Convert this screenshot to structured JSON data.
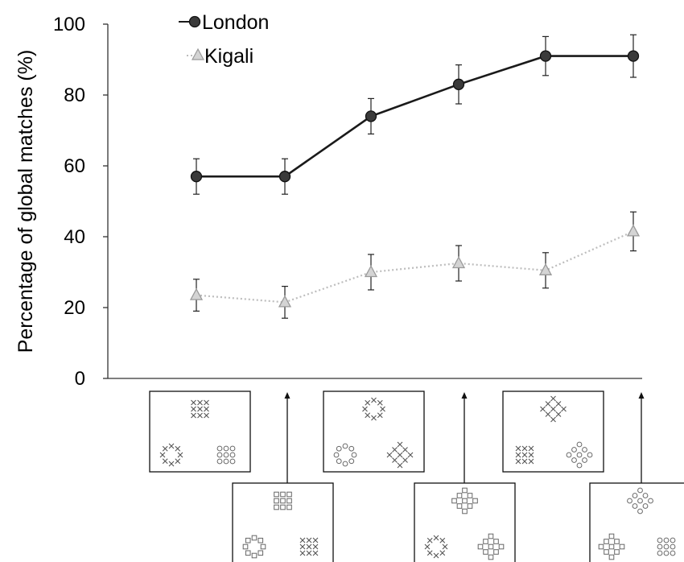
{
  "chart_data": {
    "type": "line",
    "title": "",
    "xlabel": "",
    "ylabel": "Percentage of global matches (%)",
    "ylim": [
      0,
      100
    ],
    "yticks": [
      0,
      20,
      40,
      60,
      80,
      100
    ],
    "grid": false,
    "legend_position": "top-left",
    "x": [
      1,
      2,
      3,
      4,
      5,
      6
    ],
    "series": [
      {
        "name": "London",
        "values": [
          57,
          57,
          74,
          83,
          91,
          91
        ],
        "error": [
          5,
          5,
          5,
          5.5,
          5.5,
          6
        ],
        "color": "#1a1a1a",
        "marker": "circle",
        "line_style": "solid"
      },
      {
        "name": "Kigali",
        "values": [
          23.5,
          21.5,
          30,
          32.5,
          30.5,
          41.5
        ],
        "error": [
          4.5,
          4.5,
          5,
          5,
          5,
          5.5
        ],
        "color": "#c0c0c0",
        "marker": "triangle",
        "line_style": "dotted"
      }
    ],
    "stimuli": [
      {
        "target": "x-square",
        "options": [
          "x-circle",
          "o-square"
        ]
      },
      {
        "target": "square-square",
        "options": [
          "square-circle",
          "x-square"
        ]
      },
      {
        "target": "x-circle",
        "options": [
          "o-circle",
          "x-diamond"
        ]
      },
      {
        "target": "square-diamond",
        "options": [
          "x-circle",
          "square-diamond"
        ]
      },
      {
        "target": "x-diamond",
        "options": [
          "x-square",
          "o-diamond"
        ]
      },
      {
        "target": "o-diamond",
        "options": [
          "square-diamond",
          "o-square"
        ]
      }
    ]
  }
}
